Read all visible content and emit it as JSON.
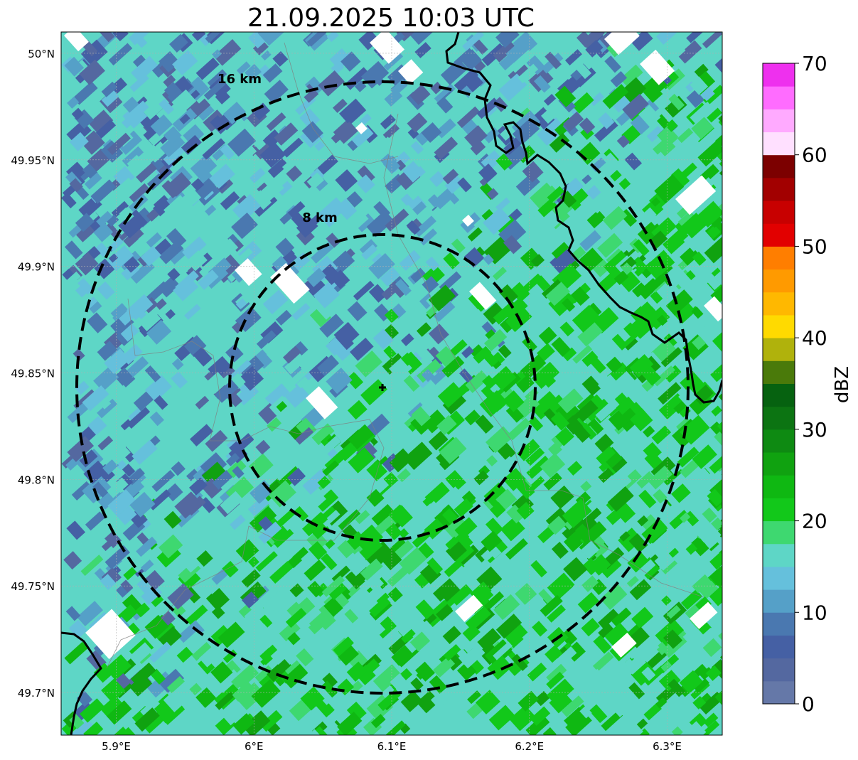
{
  "title": "21.09.2025 10:03 UTC",
  "map": {
    "lon_range": [
      5.86,
      6.34
    ],
    "lat_range": [
      49.68,
      50.01
    ],
    "lon_ticks": [
      {
        "value": 5.9,
        "label": "5.9°E"
      },
      {
        "value": 6.0,
        "label": "6°E"
      },
      {
        "value": 6.1,
        "label": "6.1°E"
      },
      {
        "value": 6.2,
        "label": "6.2°E"
      },
      {
        "value": 6.3,
        "label": "6.3°E"
      }
    ],
    "lat_ticks": [
      {
        "value": 50.0,
        "label": "50°N"
      },
      {
        "value": 49.95,
        "label": "49.95°N"
      },
      {
        "value": 49.9,
        "label": "49.9°N"
      },
      {
        "value": 49.85,
        "label": "49.85°N"
      },
      {
        "value": 49.8,
        "label": "49.8°N"
      },
      {
        "value": 49.75,
        "label": "49.75°N"
      },
      {
        "value": 49.7,
        "label": "49.7°N"
      }
    ],
    "gridlines": true,
    "radar_site": {
      "lon": 6.094,
      "lat": 49.843
    },
    "range_rings": [
      {
        "radius_km": 8,
        "label": "8 km"
      },
      {
        "radius_km": 16,
        "label": "16 km"
      }
    ],
    "border_color": "#000000",
    "precipitation_pattern": "weak echoes (blue) in north-west, moderate echoes (green, ~20-25 dBZ) in south-east"
  },
  "colorbar": {
    "label": "dBZ",
    "min": 0,
    "max": 70,
    "ticks": [
      {
        "value": 0,
        "label": "0"
      },
      {
        "value": 10,
        "label": "10"
      },
      {
        "value": 20,
        "label": "20"
      },
      {
        "value": 30,
        "label": "30"
      },
      {
        "value": 40,
        "label": "40"
      },
      {
        "value": 50,
        "label": "50"
      },
      {
        "value": 60,
        "label": "60"
      },
      {
        "value": 70,
        "label": "70"
      }
    ],
    "colors": [
      "#6578a8",
      "#5468a0",
      "#4560a4",
      "#4a78b0",
      "#55a0c8",
      "#65c0dc",
      "#5ed6c6",
      "#3ed870",
      "#12c81a",
      "#0fb812",
      "#10a210",
      "#0e8a12",
      "#0c7412",
      "#066210",
      "#4a7a0a",
      "#b0b20c",
      "#ffda00",
      "#ffb800",
      "#ff9a00",
      "#ff7e00",
      "#e20000",
      "#c80000",
      "#a20000",
      "#7c0000",
      "#ffe0ff",
      "#ffaaff",
      "#ff6cff",
      "#ee30ee"
    ]
  }
}
